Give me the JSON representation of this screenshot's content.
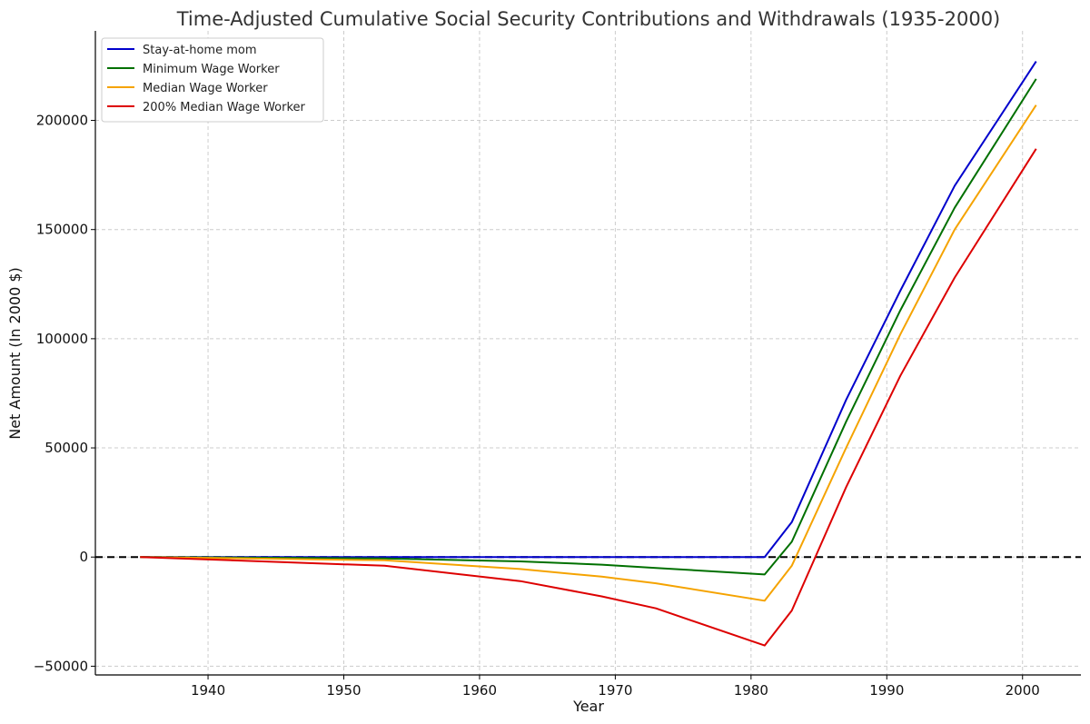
{
  "chart_data": {
    "type": "line",
    "title": "Time-Adjusted Cumulative Social Security Contributions and Withdrawals (1935-2000)",
    "xlabel": "Year",
    "ylabel": "Net Amount (In 2000 $)",
    "xlim": [
      1931.7,
      2004.3
    ],
    "ylim": [
      -54000,
      241000
    ],
    "xticks": [
      1940,
      1950,
      1960,
      1970,
      1980,
      1990,
      2000
    ],
    "yticks": [
      -50000,
      0,
      50000,
      100000,
      150000,
      200000
    ],
    "grid": true,
    "legend_position": "top-left",
    "reference_line": {
      "y": 0,
      "style": "dashed",
      "color": "#000000"
    },
    "series": [
      {
        "name": "Stay-at-home mom",
        "color": "#0000cc",
        "x": [
          1935,
          1981,
          1983,
          1987,
          1991,
          1995,
          2001
        ],
        "y": [
          0,
          0,
          16000,
          72000,
          122000,
          170000,
          227000
        ]
      },
      {
        "name": "Minimum Wage Worker",
        "color": "#007000",
        "x": [
          1935,
          1953,
          1963,
          1969,
          1973,
          1981,
          1983,
          1987,
          1991,
          1995,
          2001
        ],
        "y": [
          0,
          -600,
          -2000,
          -3500,
          -5000,
          -8000,
          7000,
          62000,
          113000,
          160000,
          219000
        ]
      },
      {
        "name": "Median Wage Worker",
        "color": "#f5a300",
        "x": [
          1935,
          1953,
          1963,
          1969,
          1973,
          1981,
          1983,
          1987,
          1991,
          1995,
          2001
        ],
        "y": [
          0,
          -1500,
          -5500,
          -9000,
          -12000,
          -20000,
          -4000,
          50000,
          102000,
          150000,
          207000
        ]
      },
      {
        "name": "200% Median Wage Worker",
        "color": "#dd0000",
        "x": [
          1935,
          1953,
          1963,
          1969,
          1973,
          1981,
          1983,
          1987,
          1991,
          1995,
          2001
        ],
        "y": [
          0,
          -4000,
          -11000,
          -18000,
          -23500,
          -40500,
          -24500,
          32000,
          83000,
          128000,
          187000
        ]
      }
    ]
  }
}
